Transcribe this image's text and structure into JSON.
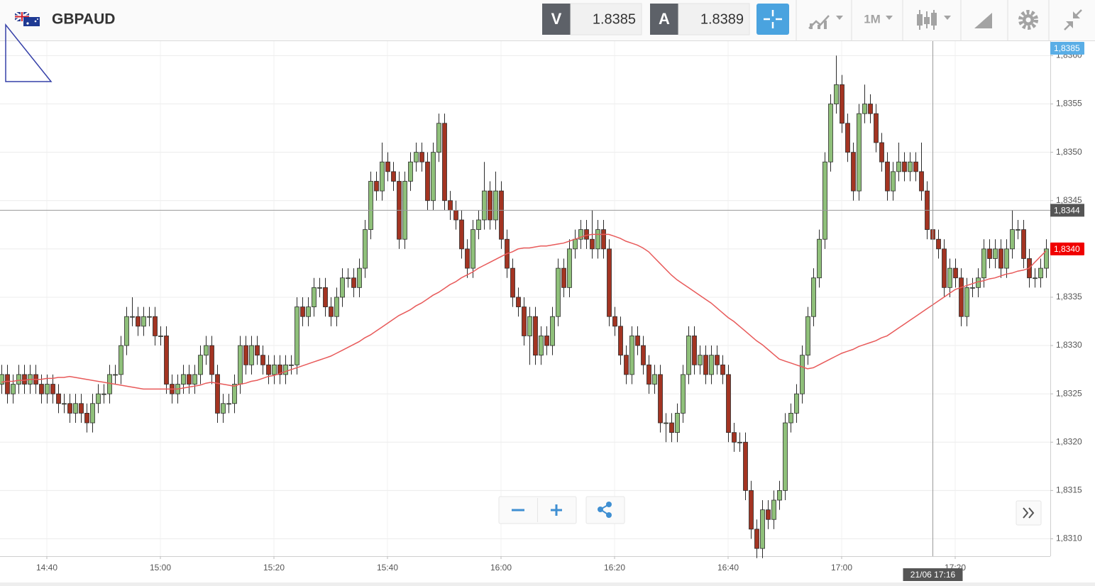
{
  "header": {
    "symbol": "GBPAUD",
    "sell_label": "V",
    "sell_price": 1.8385,
    "buy_label": "A",
    "buy_price": 1.8389,
    "timeframe": "1M"
  },
  "chart_data": {
    "type": "candlestick",
    "x": [
      "14:32",
      "14:33",
      "14:34",
      "14:35",
      "14:36",
      "14:37",
      "14:38",
      "14:39",
      "14:40",
      "14:41",
      "14:42",
      "14:43",
      "14:44",
      "14:45",
      "14:46",
      "14:47",
      "14:48",
      "14:49",
      "14:50",
      "14:51",
      "14:52",
      "14:53",
      "14:54",
      "14:55",
      "14:56",
      "14:57",
      "14:58",
      "14:59",
      "15:00",
      "15:01",
      "15:02",
      "15:03",
      "15:04",
      "15:05",
      "15:06",
      "15:07",
      "15:08",
      "15:09",
      "15:10",
      "15:11",
      "15:12",
      "15:13",
      "15:14",
      "15:15",
      "15:16",
      "15:17",
      "15:18",
      "15:19",
      "15:20",
      "15:21",
      "15:22",
      "15:23",
      "15:24",
      "15:25",
      "15:26",
      "15:27",
      "15:28",
      "15:29",
      "15:30",
      "15:31",
      "15:32",
      "15:33",
      "15:34",
      "15:35",
      "15:36",
      "15:37",
      "15:38",
      "15:39",
      "15:40",
      "15:41",
      "15:42",
      "15:43",
      "15:44",
      "15:45",
      "15:46",
      "15:47",
      "15:48",
      "15:49",
      "15:50",
      "15:51",
      "15:52",
      "15:53",
      "15:54",
      "15:55",
      "15:56",
      "15:57",
      "15:58",
      "15:59",
      "16:00",
      "16:01",
      "16:02",
      "16:03",
      "16:04",
      "16:05",
      "16:06",
      "16:07",
      "16:08",
      "16:09",
      "16:10",
      "16:11",
      "16:12",
      "16:13",
      "16:14",
      "16:15",
      "16:16",
      "16:17",
      "16:18",
      "16:19",
      "16:20",
      "16:21",
      "16:22",
      "16:23",
      "16:24",
      "16:25",
      "16:26",
      "16:27",
      "16:28",
      "16:29",
      "16:30",
      "16:31",
      "16:32",
      "16:33",
      "16:34",
      "16:35",
      "16:36",
      "16:37",
      "16:38",
      "16:39",
      "16:40",
      "16:41",
      "16:42",
      "16:43",
      "16:44",
      "16:45",
      "16:46",
      "16:47",
      "16:48",
      "16:49",
      "16:50",
      "16:51",
      "16:52",
      "16:53",
      "16:54",
      "16:55",
      "16:56",
      "16:57",
      "16:58",
      "16:59",
      "17:00",
      "17:01",
      "17:02",
      "17:03",
      "17:04",
      "17:05",
      "17:06",
      "17:07",
      "17:08",
      "17:09",
      "17:10",
      "17:11",
      "17:12",
      "17:13",
      "17:14",
      "17:15",
      "17:16",
      "17:17",
      "17:18",
      "17:19",
      "17:20",
      "17:21",
      "17:22",
      "17:23",
      "17:24",
      "17:25",
      "17:26",
      "17:27",
      "17:28",
      "17:29",
      "17:30",
      "17:31",
      "17:32",
      "17:33",
      "17:34",
      "17:35",
      "17:36"
    ],
    "open": [
      1.8326,
      1.8327,
      1.8325,
      1.8326,
      1.8327,
      1.8326,
      1.8327,
      1.8326,
      1.8325,
      1.8326,
      1.8325,
      1.8324,
      1.8324,
      1.8323,
      1.8324,
      1.8323,
      1.8322,
      1.8324,
      1.8325,
      1.8325,
      1.8327,
      1.8327,
      1.833,
      1.8333,
      1.8333,
      1.8332,
      1.8333,
      1.8333,
      1.8331,
      1.8331,
      1.8326,
      1.8325,
      1.8326,
      1.8327,
      1.8326,
      1.8327,
      1.8329,
      1.833,
      1.8327,
      1.8323,
      1.8324,
      1.8324,
      1.8326,
      1.833,
      1.8328,
      1.833,
      1.8329,
      1.8328,
      1.8327,
      1.8328,
      1.8327,
      1.8328,
      1.8328,
      1.8334,
      1.8333,
      1.8334,
      1.8336,
      1.8336,
      1.8334,
      1.8333,
      1.8335,
      1.8337,
      1.8337,
      1.8336,
      1.8338,
      1.8342,
      1.8347,
      1.8346,
      1.8349,
      1.8348,
      1.8347,
      1.8341,
      1.8347,
      1.8349,
      1.835,
      1.8349,
      1.8345,
      1.835,
      1.8353,
      1.8345,
      1.8344,
      1.8343,
      1.834,
      1.8338,
      1.8342,
      1.8343,
      1.8346,
      1.8343,
      1.8346,
      1.8341,
      1.8338,
      1.8335,
      1.8334,
      1.8331,
      1.8333,
      1.8329,
      1.8331,
      1.833,
      1.8333,
      1.8338,
      1.8336,
      1.834,
      1.8341,
      1.8342,
      1.8341,
      1.834,
      1.8342,
      1.834,
      1.8333,
      1.8332,
      1.8329,
      1.8327,
      1.8331,
      1.833,
      1.8328,
      1.8326,
      1.8327,
      1.8322,
      1.8322,
      1.8321,
      1.8323,
      1.8327,
      1.8331,
      1.8328,
      1.8329,
      1.8327,
      1.8329,
      1.8328,
      1.8327,
      1.8321,
      1.832,
      1.832,
      1.8315,
      1.8311,
      1.8309,
      1.8313,
      1.8312,
      1.8314,
      1.8315,
      1.8322,
      1.8323,
      1.8325,
      1.8329,
      1.8333,
      1.8337,
      1.8341,
      1.8349,
      1.8355,
      1.8357,
      1.8353,
      1.835,
      1.8346,
      1.8354,
      1.8355,
      1.8354,
      1.8351,
      1.8349,
      1.8346,
      1.8348,
      1.8349,
      1.8348,
      1.8349,
      1.8348,
      1.8346,
      1.8342,
      1.8341,
      1.834,
      1.8336,
      1.8338,
      1.8337,
      1.8333,
      1.8336,
      1.8336,
      1.8337,
      1.834,
      1.8339,
      1.834,
      1.8338,
      1.834,
      1.8342,
      1.8342,
      1.8339,
      1.8337,
      1.8337,
      1.8338
    ],
    "high": [
      1.8328,
      1.8328,
      1.8327,
      1.8328,
      1.8328,
      1.8328,
      1.8328,
      1.8327,
      1.8327,
      1.8327,
      1.8326,
      1.8325,
      1.8325,
      1.8325,
      1.8325,
      1.8324,
      1.8325,
      1.8326,
      1.8326,
      1.8328,
      1.8328,
      1.8331,
      1.8334,
      1.8335,
      1.8334,
      1.8334,
      1.8334,
      1.8334,
      1.8332,
      1.8332,
      1.8327,
      1.8327,
      1.8328,
      1.8328,
      1.8328,
      1.833,
      1.8331,
      1.8331,
      1.8328,
      1.8325,
      1.8325,
      1.8327,
      1.8331,
      1.8331,
      1.8331,
      1.8331,
      1.833,
      1.8329,
      1.8329,
      1.8329,
      1.8329,
      1.8329,
      1.8335,
      1.8335,
      1.8335,
      1.8337,
      1.8337,
      1.8337,
      1.8335,
      1.8336,
      1.8338,
      1.8338,
      1.8338,
      1.8339,
      1.8343,
      1.8348,
      1.8348,
      1.8351,
      1.835,
      1.8349,
      1.8348,
      1.8348,
      1.835,
      1.8351,
      1.8351,
      1.835,
      1.8351,
      1.8354,
      1.8354,
      1.8346,
      1.8345,
      1.8344,
      1.8341,
      1.8343,
      1.8344,
      1.8349,
      1.8347,
      1.8348,
      1.8347,
      1.8342,
      1.8339,
      1.8336,
      1.8335,
      1.8334,
      1.8334,
      1.8332,
      1.8332,
      1.8334,
      1.8339,
      1.8339,
      1.8341,
      1.8342,
      1.8343,
      1.8343,
      1.8344,
      1.8343,
      1.8343,
      1.8341,
      1.8334,
      1.8333,
      1.833,
      1.8332,
      1.8332,
      1.8331,
      1.8329,
      1.8328,
      1.8328,
      1.8323,
      1.8323,
      1.8324,
      1.8328,
      1.8332,
      1.8332,
      1.833,
      1.833,
      1.833,
      1.833,
      1.8329,
      1.8328,
      1.8322,
      1.8321,
      1.8321,
      1.8316,
      1.8312,
      1.8314,
      1.8314,
      1.8315,
      1.8316,
      1.8323,
      1.8324,
      1.8326,
      1.833,
      1.8334,
      1.8338,
      1.8342,
      1.835,
      1.8356,
      1.836,
      1.8358,
      1.8354,
      1.8351,
      1.8355,
      1.8357,
      1.8356,
      1.8355,
      1.8352,
      1.835,
      1.8349,
      1.8351,
      1.835,
      1.835,
      1.835,
      1.8351,
      1.8347,
      1.8343,
      1.8342,
      1.8341,
      1.8339,
      1.8339,
      1.8338,
      1.8337,
      1.8337,
      1.8338,
      1.8341,
      1.8341,
      1.8341,
      1.8341,
      1.8341,
      1.8344,
      1.8343,
      1.8343,
      1.834,
      1.8338,
      1.8339,
      1.8341
    ],
    "low": [
      1.8325,
      1.8324,
      1.8324,
      1.8325,
      1.8325,
      1.8325,
      1.8325,
      1.8324,
      1.8324,
      1.8324,
      1.8323,
      1.8323,
      1.8322,
      1.8322,
      1.8322,
      1.8321,
      1.8321,
      1.8323,
      1.8324,
      1.8324,
      1.8326,
      1.8326,
      1.8329,
      1.8332,
      1.8331,
      1.8331,
      1.8332,
      1.833,
      1.833,
      1.8325,
      1.8324,
      1.8324,
      1.8325,
      1.8325,
      1.8325,
      1.8326,
      1.8328,
      1.8326,
      1.8322,
      1.8322,
      1.8323,
      1.8323,
      1.8325,
      1.8327,
      1.8327,
      1.8328,
      1.8327,
      1.8326,
      1.8326,
      1.8326,
      1.8326,
      1.8327,
      1.8327,
      1.8332,
      1.8332,
      1.8333,
      1.8335,
      1.8333,
      1.8332,
      1.8332,
      1.8334,
      1.8336,
      1.8335,
      1.8335,
      1.8337,
      1.8341,
      1.8345,
      1.8345,
      1.8347,
      1.8346,
      1.834,
      1.834,
      1.8346,
      1.8348,
      1.8348,
      1.8344,
      1.8344,
      1.8349,
      1.8344,
      1.8343,
      1.8342,
      1.8339,
      1.8337,
      1.8337,
      1.8341,
      1.8342,
      1.8342,
      1.8342,
      1.834,
      1.8337,
      1.8334,
      1.8333,
      1.833,
      1.8328,
      1.8328,
      1.8328,
      1.8329,
      1.8329,
      1.8332,
      1.8335,
      1.8335,
      1.8339,
      1.834,
      1.834,
      1.8339,
      1.8339,
      1.8339,
      1.8332,
      1.8331,
      1.8328,
      1.8326,
      1.8326,
      1.8329,
      1.8327,
      1.8325,
      1.8325,
      1.8321,
      1.832,
      1.832,
      1.832,
      1.8322,
      1.8326,
      1.8327,
      1.8327,
      1.8326,
      1.8326,
      1.8327,
      1.8326,
      1.832,
      1.8319,
      1.8319,
      1.8314,
      1.831,
      1.8308,
      1.8308,
      1.8311,
      1.8311,
      1.8313,
      1.8314,
      1.8321,
      1.8322,
      1.8324,
      1.8328,
      1.8332,
      1.8336,
      1.834,
      1.8348,
      1.8354,
      1.8352,
      1.8349,
      1.8345,
      1.8345,
      1.8353,
      1.8353,
      1.835,
      1.8348,
      1.8345,
      1.8345,
      1.8347,
      1.8347,
      1.8347,
      1.8347,
      1.8345,
      1.8341,
      1.834,
      1.8339,
      1.8335,
      1.8335,
      1.8336,
      1.8332,
      1.8332,
      1.8335,
      1.8335,
      1.8336,
      1.8338,
      1.8338,
      1.8337,
      1.8337,
      1.8339,
      1.8341,
      1.8338,
      1.8336,
      1.8336,
      1.8336,
      1.8337
    ],
    "close": [
      1.8327,
      1.8325,
      1.8326,
      1.8327,
      1.8326,
      1.8327,
      1.8326,
      1.8325,
      1.8326,
      1.8325,
      1.8324,
      1.8324,
      1.8323,
      1.8324,
      1.8323,
      1.8322,
      1.8324,
      1.8325,
      1.8325,
      1.8327,
      1.8327,
      1.833,
      1.8333,
      1.8333,
      1.8332,
      1.8333,
      1.8333,
      1.8331,
      1.8331,
      1.8326,
      1.8325,
      1.8326,
      1.8327,
      1.8326,
      1.8327,
      1.8329,
      1.833,
      1.8327,
      1.8323,
      1.8324,
      1.8324,
      1.8326,
      1.833,
      1.8328,
      1.833,
      1.8329,
      1.8328,
      1.8327,
      1.8328,
      1.8327,
      1.8328,
      1.8328,
      1.8334,
      1.8333,
      1.8334,
      1.8336,
      1.8336,
      1.8334,
      1.8333,
      1.8335,
      1.8337,
      1.8337,
      1.8336,
      1.8338,
      1.8342,
      1.8347,
      1.8346,
      1.8349,
      1.8348,
      1.8347,
      1.8341,
      1.8347,
      1.8349,
      1.835,
      1.8349,
      1.8345,
      1.835,
      1.8353,
      1.8345,
      1.8344,
      1.8343,
      1.834,
      1.8338,
      1.8342,
      1.8343,
      1.8346,
      1.8343,
      1.8346,
      1.8341,
      1.8338,
      1.8335,
      1.8334,
      1.8331,
      1.8333,
      1.8329,
      1.8331,
      1.833,
      1.8333,
      1.8338,
      1.8336,
      1.834,
      1.8341,
      1.8342,
      1.8341,
      1.834,
      1.8342,
      1.834,
      1.8333,
      1.8332,
      1.8329,
      1.8327,
      1.8331,
      1.833,
      1.8328,
      1.8326,
      1.8327,
      1.8322,
      1.8322,
      1.8321,
      1.8323,
      1.8327,
      1.8331,
      1.8328,
      1.8329,
      1.8327,
      1.8329,
      1.8328,
      1.8327,
      1.8321,
      1.832,
      1.832,
      1.8315,
      1.8311,
      1.8309,
      1.8313,
      1.8312,
      1.8314,
      1.8315,
      1.8322,
      1.8323,
      1.8325,
      1.8329,
      1.8333,
      1.8337,
      1.8341,
      1.8349,
      1.8355,
      1.8357,
      1.8353,
      1.835,
      1.8346,
      1.8354,
      1.8355,
      1.8354,
      1.8351,
      1.8349,
      1.8346,
      1.8348,
      1.8349,
      1.8348,
      1.8349,
      1.8348,
      1.8346,
      1.8342,
      1.8341,
      1.834,
      1.8336,
      1.8338,
      1.8337,
      1.8333,
      1.8336,
      1.8336,
      1.8337,
      1.834,
      1.8339,
      1.834,
      1.8338,
      1.834,
      1.8342,
      1.8342,
      1.8339,
      1.8337,
      1.8337,
      1.8338,
      1.834
    ],
    "up_color": "#8fc07a",
    "down_color": "#a33422",
    "outline_color": "#2b2b2b",
    "ma": {
      "color": "#e85a5a",
      "values": [
        1.83262,
        1.83263,
        1.83263,
        1.83264,
        1.83264,
        1.83265,
        1.83265,
        1.83265,
        1.83266,
        1.83266,
        1.83267,
        1.83267,
        1.83268,
        1.83267,
        1.83266,
        1.83265,
        1.83264,
        1.83263,
        1.83262,
        1.83261,
        1.8326,
        1.83259,
        1.83258,
        1.83257,
        1.83256,
        1.83255,
        1.83255,
        1.83255,
        1.83255,
        1.83255,
        1.83255,
        1.83255,
        1.83256,
        1.83257,
        1.83258,
        1.83259,
        1.83261,
        1.83262,
        1.83261,
        1.8326,
        1.83259,
        1.83258,
        1.8326,
        1.83261,
        1.83263,
        1.83264,
        1.83266,
        1.83268,
        1.83269,
        1.83271,
        1.83273,
        1.83275,
        1.83277,
        1.83279,
        1.83281,
        1.83283,
        1.83285,
        1.83287,
        1.83289,
        1.83292,
        1.83295,
        1.83298,
        1.83301,
        1.83304,
        1.83308,
        1.83311,
        1.83315,
        1.83319,
        1.83323,
        1.83327,
        1.83331,
        1.83334,
        1.83337,
        1.83341,
        1.83344,
        1.83348,
        1.83352,
        1.83355,
        1.83359,
        1.83363,
        1.83366,
        1.8337,
        1.83373,
        1.83376,
        1.8338,
        1.83383,
        1.83386,
        1.83389,
        1.83392,
        1.83395,
        1.83397,
        1.834,
        1.83401,
        1.83401,
        1.83402,
        1.83403,
        1.83403,
        1.83404,
        1.83405,
        1.83406,
        1.83408,
        1.8341,
        1.83412,
        1.83414,
        1.83415,
        1.83415,
        1.83415,
        1.83415,
        1.83413,
        1.83411,
        1.83408,
        1.83406,
        1.83404,
        1.83401,
        1.83397,
        1.83391,
        1.83385,
        1.83379,
        1.83373,
        1.83368,
        1.83364,
        1.8336,
        1.83356,
        1.83352,
        1.83348,
        1.83344,
        1.83339,
        1.83334,
        1.83329,
        1.83325,
        1.8332,
        1.83315,
        1.8331,
        1.83305,
        1.83301,
        1.83296,
        1.83291,
        1.83286,
        1.83284,
        1.83282,
        1.8328,
        1.83278,
        1.83276,
        1.83277,
        1.8328,
        1.83283,
        1.83286,
        1.83289,
        1.83292,
        1.83294,
        1.83296,
        1.83299,
        1.83301,
        1.83303,
        1.83305,
        1.83308,
        1.8331,
        1.83314,
        1.83318,
        1.83322,
        1.83326,
        1.8333,
        1.83334,
        1.83338,
        1.83342,
        1.83346,
        1.8335,
        1.83354,
        1.83358,
        1.8336,
        1.83362,
        1.83364,
        1.83366,
        1.83367,
        1.83369,
        1.8337,
        1.83372,
        1.83374,
        1.83375,
        1.83377,
        1.83378,
        1.8338,
        1.83386,
        1.83392,
        1.83398
      ]
    },
    "ylim": [
      1.83082,
      1.83615
    ],
    "yticks": [
      {
        "value": 1.831,
        "label": "1,8310"
      },
      {
        "value": 1.8315,
        "label": "1,8315"
      },
      {
        "value": 1.832,
        "label": "1,8320"
      },
      {
        "value": 1.8325,
        "label": "1,8325"
      },
      {
        "value": 1.833,
        "label": "1,8330"
      },
      {
        "value": 1.8335,
        "label": "1,8335"
      },
      {
        "value": 1.834,
        "label": "1,8340"
      },
      {
        "value": 1.8345,
        "label": "1,8345"
      },
      {
        "value": 1.835,
        "label": "1,8350"
      },
      {
        "value": 1.8355,
        "label": "1,8355"
      },
      {
        "value": 1.836,
        "label": "1,8360"
      }
    ],
    "xticks": [
      "14:40",
      "15:00",
      "15:20",
      "15:40",
      "16:00",
      "16:20",
      "16:40",
      "17:00",
      "17:20"
    ],
    "grid": true,
    "price_labels": [
      {
        "value": 1.8385,
        "label": "1,8385",
        "color": "#5aaee6"
      },
      {
        "value": 1.834,
        "label": "1,8340",
        "color": "#f00000"
      }
    ],
    "crosshair": {
      "label": "21/06 17:16",
      "price": {
        "value": 1.8344,
        "label": "1,8344"
      },
      "color": "#555555"
    }
  }
}
